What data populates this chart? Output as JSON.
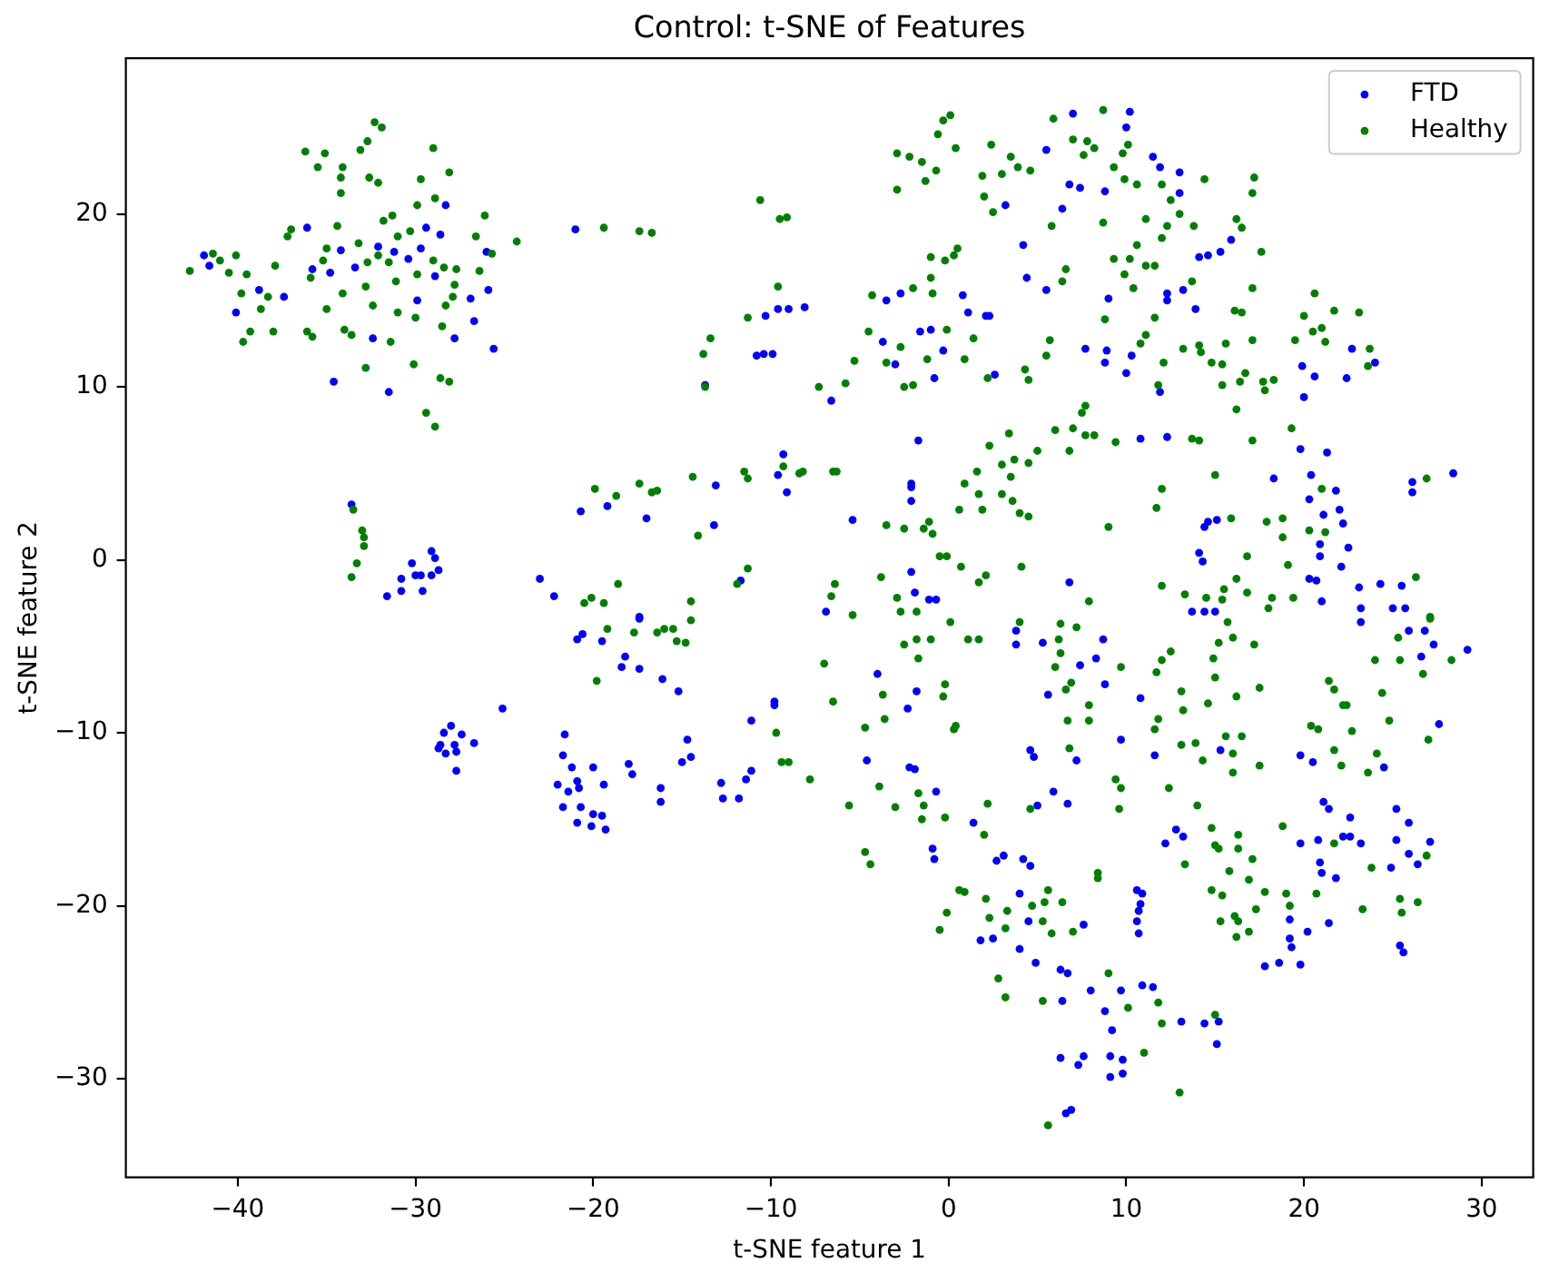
{
  "chart_data": {
    "type": "scatter",
    "title": "Control: t-SNE of Features",
    "xlabel": "t-SNE feature 1",
    "ylabel": "t-SNE feature 2",
    "xlim": [
      -46.3,
      32.9
    ],
    "ylim": [
      -35.7,
      29.0
    ],
    "xticks": [
      {
        "value": -40,
        "label": "−40"
      },
      {
        "value": -30,
        "label": "−30"
      },
      {
        "value": -20,
        "label": "−20"
      },
      {
        "value": -10,
        "label": "−10"
      },
      0,
      10,
      20,
      30
    ],
    "yticks": [
      {
        "value": -30,
        "label": "−30"
      },
      {
        "value": -20,
        "label": "−20"
      },
      {
        "value": -10,
        "label": "−10"
      },
      0,
      10,
      20
    ],
    "marker": "circle",
    "legend": "top right",
    "series": [
      {
        "name": "FTD",
        "color": "#0000ff",
        "x": [
          -41.9,
          -41.6,
          -40.1,
          -38.8,
          -37.4,
          -36.1,
          -35.8,
          -34.8,
          -34.2,
          -33.4,
          -34.6,
          -32.1,
          -32.4,
          -31.5,
          -31.2,
          -30.4,
          -29.7,
          -29.4,
          -28.6,
          -28.3,
          -28.9,
          -29.9,
          -27.8,
          -26.9,
          -26.7,
          -26.0,
          -25.9,
          -25.6,
          -21.0,
          -20.7,
          -23.0,
          -22.2,
          -33.6,
          -31.6,
          -30.8,
          -30.8,
          -30.2,
          -30.0,
          -29.7,
          -29.6,
          -29.1,
          -28.9,
          -29.1,
          -28.7,
          7.0,
          5.5,
          6.8,
          7.4,
          6.4,
          3.2,
          4.2,
          4.4,
          5.5,
          0.8,
          1.1,
          2.1,
          2.3,
          -2.7,
          -3.5,
          -3.7,
          -3.0,
          -1.6,
          -1.0,
          -0.3,
          -0.8,
          2.6,
          -6.6,
          -13.7,
          -10.8,
          -10.4,
          -9.9,
          -10.3,
          -9.6,
          -9.0,
          -8.1,
          7.7,
          -1.7,
          -9.3,
          -9.6,
          -9.1,
          -13.1,
          -17.0,
          -13.2,
          -19.2,
          -2.1,
          -2.1,
          -2.1,
          -5.4,
          -2.1,
          -1.9,
          -1.1,
          -0.7,
          -6.9,
          -11.7,
          -17.4,
          6.8,
          10.2,
          10.0,
          8.8,
          11.5,
          11.9,
          13.0,
          13.0,
          14.1,
          14.6,
          15.3,
          15.9,
          9.0,
          12.3,
          12.3,
          13.2,
          13.9,
          8.9,
          8.8,
          10.3,
          10.0,
          11.9,
          19.9,
          20.6,
          20.0,
          22.4,
          22.7,
          24.0,
          10.8,
          12.3,
          19.8,
          21.3,
          18.3,
          20.4,
          21.8,
          20.3,
          22.0,
          21.1,
          22.2,
          20.9,
          22.5,
          20.9,
          22.1,
          20.3,
          20.7,
          21.0,
          23.1,
          24.3,
          25.5,
          23.2,
          25.0,
          25.7,
          26.1,
          26.1,
          28.4,
          14.4,
          14.6,
          15.1,
          14.1,
          14.3,
          13.7,
          14.4,
          15.0,
          -25.1,
          -28.0,
          -28.4,
          -27.4,
          -28.6,
          -27.8,
          -28.7,
          -27.7,
          -28.3,
          -26.7,
          -27.7,
          -21.6,
          -21.7,
          -21.2,
          -22.0,
          -21.4,
          -20.9,
          -20.8,
          -21.7,
          -20.7,
          -20.9,
          -20.1,
          -20.0,
          -20.0,
          -20.9,
          -20.6,
          -19.5,
          -18.4,
          -18.2,
          -17.4,
          -17.4,
          -16.1,
          -15.2,
          -19.4,
          -19.5,
          -19.3,
          -18.0,
          -17.8,
          -16.2,
          -16.2,
          -14.7,
          -15.0,
          -14.5,
          -12.8,
          -12.7,
          -11.8,
          -11.4,
          -11.1,
          -11.1,
          -9.8,
          -9.8,
          -4.0,
          -2.3,
          -1.8,
          -4.6,
          -2.2,
          -1.9,
          -0.7,
          -0.9,
          -0.8,
          1.4,
          2.7,
          3.1,
          4.2,
          4.6,
          3.8,
          3.8,
          5.3,
          5.6,
          4.6,
          4.8,
          5.0,
          5.9,
          4.0,
          4.5,
          1.8,
          2.5,
          4.0,
          4.9,
          6.7,
          7.2,
          7.4,
          8.3,
          8.7,
          8.8,
          9.7,
          10.8,
          11.6,
          12.2,
          12.8,
          13.2,
          15.3,
          10.6,
          10.9,
          10.8,
          10.7,
          10.6,
          10.7,
          7.6,
          6.3,
          6.7,
          6.4,
          6.3,
          7.3,
          7.6,
          6.6,
          6.9,
          8.0,
          8.8,
          9.2,
          9.7,
          9.1,
          9.8,
          9.1,
          9.8,
          10.9,
          11.5,
          13.1,
          14.4,
          15.2,
          15.1,
          17.8,
          18.6,
          19.8,
          19.2,
          19.2,
          19.3,
          20.2,
          21.4,
          19.8,
          20.8,
          20.9,
          21.0,
          21.8,
          21.1,
          21.4,
          22.2,
          22.6,
          22.6,
          23.2,
          24.9,
          25.2,
          25.2,
          25.9,
          25.9,
          26.4,
          27.1,
          27.6,
          26.6,
          27.3,
          26.8,
          25.9,
          29.2,
          23.2,
          25.4,
          25.6,
          20.5,
          19.8,
          24.5
        ],
        "values": [
          17.6,
          17.0,
          14.3,
          15.6,
          15.2,
          19.2,
          16.8,
          16.6,
          17.9,
          16.9,
          10.3,
          18.1,
          12.8,
          9.7,
          17.8,
          17.4,
          18.0,
          19.2,
          18.8,
          20.5,
          16.4,
          15.0,
          12.8,
          15.1,
          13.8,
          17.8,
          15.6,
          12.2,
          19.1,
          2.8,
          -1.1,
          -2.1,
          3.2,
          -2.1,
          -1.1,
          -1.8,
          -0.2,
          -0.9,
          -0.9,
          -1.8,
          0.5,
          0.1,
          -0.9,
          -0.6,
          25.8,
          23.7,
          21.7,
          21.5,
          20.3,
          20.5,
          18.2,
          16.3,
          15.6,
          15.3,
          14.3,
          14.1,
          14.1,
          15.4,
          15.0,
          12.6,
          11.3,
          13.2,
          13.3,
          12.1,
          10.5,
          10.7,
          9.2,
          10.1,
          11.8,
          11.9,
          11.9,
          14.1,
          14.5,
          14.5,
          14.6,
          12.2,
          6.9,
          6.1,
          4.9,
          3.9,
          4.3,
          2.4,
          2.0,
          3.1,
          4.4,
          4.2,
          3.4,
          2.3,
          -0.7,
          -1.9,
          -2.3,
          -2.3,
          -3.0,
          -1.2,
          -3.3,
          -1.3,
          25.9,
          25.0,
          21.3,
          23.3,
          22.7,
          22.4,
          21.2,
          17.5,
          17.6,
          17.8,
          18.5,
          15.1,
          15.4,
          15.0,
          15.6,
          14.5,
          12.1,
          11.4,
          11.8,
          10.8,
          9.7,
          11.2,
          10.6,
          9.4,
          10.5,
          12.2,
          11.4,
          7.0,
          7.1,
          6.4,
          6.2,
          4.7,
          4.9,
          4.0,
          3.5,
          2.9,
          2.6,
          2.1,
          0.9,
          0.7,
          0.2,
          -0.4,
          -1.1,
          -1.2,
          -2.4,
          -1.6,
          -1.4,
          -1.5,
          -2.8,
          -2.8,
          -2.8,
          4.5,
          3.9,
          5.0,
          1.9,
          2.2,
          2.3,
          0.4,
          -0.1,
          -3.0,
          -3.0,
          -3.0,
          -8.6,
          -9.6,
          -10.0,
          -10.1,
          -10.7,
          -10.7,
          -10.9,
          -11.1,
          -11.2,
          -10.6,
          -12.2,
          -10.1,
          -11.3,
          -12.0,
          -13.0,
          -13.4,
          -12.8,
          -13.2,
          -14.3,
          -14.3,
          -15.2,
          -15.4,
          -14.7,
          -12.0,
          -4.6,
          -4.3,
          -4.7,
          -6.2,
          -5.6,
          -6.3,
          -3.4,
          -6.9,
          -7.6,
          -13.0,
          -14.8,
          -15.6,
          -11.8,
          -12.4,
          -13.2,
          -14.0,
          -10.4,
          -11.7,
          -11.4,
          -12.9,
          -13.8,
          -13.8,
          -12.7,
          -12.2,
          -9.3,
          -8.2,
          -8.4,
          -6.6,
          -8.6,
          -7.6,
          -11.6,
          -12.0,
          -12.1,
          -13.4,
          -16.7,
          -17.3,
          -15.2,
          -17.4,
          -17.1,
          -17.3,
          -17.7,
          -4.1,
          -4.9,
          -4.8,
          -7.8,
          -11.0,
          -11.4,
          -14.2,
          -13.4,
          -19.3,
          -20.9,
          -22.0,
          -21.9,
          -22.5,
          -23.3,
          -14.1,
          -11.6,
          -6.1,
          -5.7,
          -4.6,
          -7.2,
          -10.4,
          -8.0,
          -11.3,
          -16.4,
          -15.6,
          -16.0,
          -11.0,
          -19.1,
          -19.3,
          -19.9,
          -20.3,
          -20.9,
          -21.6,
          -21.1,
          -23.7,
          -23.9,
          -25.5,
          -28.8,
          -29.2,
          -28.7,
          -32.0,
          -31.8,
          -24.9,
          -26.1,
          -27.2,
          -24.9,
          -28.7,
          -28.9,
          -29.9,
          -29.7,
          -24.6,
          -24.7,
          -26.7,
          -26.8,
          -26.7,
          -28.0,
          -23.5,
          -23.3,
          -23.4,
          -20.8,
          -21.9,
          -22.4,
          -21.5,
          -21.0,
          -16.4,
          -16.2,
          -17.5,
          -18.1,
          -18.4,
          -14.0,
          -14.4,
          -16.0,
          -16.0,
          -14.9,
          -16.4,
          -17.8,
          -14.4,
          -16.2,
          -15.2,
          -17.0,
          -17.6,
          -16.3,
          -9.5,
          -5.6,
          -4.9,
          -4.1,
          -4.1,
          -5.2,
          -3.6,
          -22.3,
          -22.7,
          -11.7,
          -11.3,
          -12.0
        ]
      },
      {
        "name": "Healthy",
        "color": "#008000",
        "x": [
          -42.7,
          -41.4,
          -41.0,
          -40.5,
          -40.1,
          -39.8,
          -39.7,
          -39.5,
          -39.3,
          -38.7,
          -38.3,
          -38.0,
          -37.9,
          -37.2,
          -37.0,
          -36.2,
          -36.1,
          -35.9,
          -35.8,
          -35.5,
          -35.2,
          -35.1,
          -35.0,
          -35.0,
          -34.4,
          -34.2,
          -34.2,
          -34.1,
          -34.1,
          -34.0,
          -33.6,
          -33.2,
          -33.1,
          -32.8,
          -32.8,
          -32.7,
          -32.7,
          -32.6,
          -32.4,
          -32.3,
          -32.1,
          -32.1,
          -31.9,
          -31.8,
          -31.5,
          -31.4,
          -31.3,
          -31.1,
          -31.0,
          -31.0,
          -30.3,
          -30.1,
          -30.0,
          -29.9,
          -29.9,
          -29.7,
          -29.4,
          -29.0,
          -29.0,
          -28.9,
          -28.9,
          -28.6,
          -28.5,
          -28.4,
          -28.3,
          -28.1,
          -28.1,
          -27.9,
          -27.8,
          -27.7,
          -26.6,
          -26.4,
          -26.1,
          -25.7,
          -24.3,
          -33.5,
          -33.0,
          -32.9,
          -32.9,
          -33.3,
          -33.6,
          -19.9,
          -20.5,
          -20.1,
          -19.4,
          -17.4,
          -16.7,
          -10.6,
          -9.5,
          -9.1,
          -9.6,
          -11.3,
          -13.4,
          -13.8,
          -13.7,
          -7.3,
          -5.8,
          -5.3,
          -4.5,
          -4.3,
          -3.5,
          -2.7,
          -2.5,
          -2.0,
          -2.0,
          -1.0,
          -0.9,
          -1.0,
          -0.2,
          0.3,
          0.5,
          -0.1,
          -1.2,
          0.9,
          1.4,
          -2.9,
          -2.9,
          -2.2,
          -1.5,
          -1.3,
          -0.7,
          -0.6,
          -0.3,
          0.1,
          0.4,
          1.9,
          2.0,
          2.4,
          2.5,
          3.0,
          3.5,
          3.9,
          4.6,
          5.9,
          5.8,
          6.4,
          6.6,
          7.0,
          7.6,
          7.8,
          4.3,
          4.5,
          5.5,
          5.7,
          2.2,
          7.5,
          7.7,
          7.7,
          6.8,
          7.0,
          6.0,
          5.0,
          4.5,
          3.4,
          3.0,
          3.7,
          3.5,
          2.3,
          1.6,
          0.9,
          1.7,
          1.9,
          3.0,
          3.6,
          4.0,
          4.5,
          0.6,
          -3.5,
          -2.5,
          -1.4,
          -1.1,
          -0.9,
          -0.5,
          -0.1,
          0.7,
          1.7,
          2.1,
          4.1,
          -3.8,
          -2.9,
          -2.7,
          -1.8,
          -6.4,
          -6.6,
          -5.4,
          -14.4,
          -11.5,
          -11.3,
          -9.3,
          -8.4,
          -8.2,
          -6.5,
          -6.3,
          -17.4,
          -16.7,
          -16.4,
          -18.7,
          -14.1,
          -11.3,
          -11.9,
          -18.6,
          -19.4,
          -14.5,
          8.7,
          8.2,
          10.1,
          9.8,
          9.3,
          9.9,
          10.6,
          12.0,
          14.4,
          17.2,
          17.1,
          12.5,
          13.0,
          11.1,
          8.7,
          12.3,
          13.8,
          16.2,
          16.5,
          12.0,
          10.6,
          17.6,
          9.3,
          10.2,
          11.1,
          11.6,
          9.9,
          10.4,
          13.7,
          17.1,
          8.8,
          11.6,
          11.1,
          10.8,
          12.1,
          13.2,
          14.1,
          14.2,
          14.8,
          15.4,
          15.6,
          16.1,
          16.5,
          17.1,
          16.7,
          16.4,
          15.4,
          16.2,
          17.7,
          18.3,
          17.8,
          11.8,
          19.5,
          20.0,
          20.5,
          21.0,
          21.2,
          20.6,
          21.7,
          23.1,
          23.7,
          23.6,
          8.2,
          9.4,
          13.7,
          14.1,
          17.1,
          19.3,
          15.0,
          12.0,
          11.7,
          9.0,
          15.9,
          17.9,
          18.8,
          18.8,
          20.3,
          21.2,
          21.0,
          16.8,
          19.1,
          16.2,
          15.5,
          16.8,
          18.2,
          19.4,
          18.0,
          15.4,
          13.3,
          12.0,
          14.5,
          26.3,
          26.9,
          27.1,
          7.9,
          -19.8,
          -19.2,
          -17.7,
          -16.4,
          -16.0,
          -15.5,
          -15.3,
          -14.8,
          -14.5,
          -7.0,
          -6.5,
          -4.7,
          -3.7,
          -3.6,
          -9.7,
          -9.4,
          -9.0,
          -7.8,
          -5.6,
          -3.9,
          -3.0,
          -1.7,
          -1.4,
          -1.5,
          -0.2,
          -0.3,
          0.1,
          0.3,
          0.4,
          -1.0,
          -1.8,
          -1.7,
          -2.5,
          1.1,
          1.7,
          2.2,
          2.0,
          -0.2,
          -4.7,
          -4.4,
          0.6,
          0.9,
          -0.1,
          -0.5,
          2.1,
          2.3,
          3.3,
          3.2,
          4.7,
          5.4,
          5.6,
          5.3,
          5.8,
          2.8,
          3.2,
          5.3,
          5.6,
          4.0,
          4.6,
          6.0,
          6.3,
          7.2,
          6.2,
          6.3,
          6.6,
          6.9,
          7.9,
          7.9,
          6.7,
          6.8,
          9.7,
          11.7,
          12.0,
          12.5,
          13.1,
          13.2,
          11.6,
          11.8,
          13.1,
          13.9,
          14.3,
          14.6,
          15.0,
          14.9,
          15.2,
          15.7,
          16.0,
          17.2,
          16.2,
          15.6,
          16.5,
          16.0,
          16.0,
          17.5,
          17.5,
          14.0,
          12.4,
          9.4,
          9.7,
          9.6,
          14.8,
          15.0,
          15.2,
          13.3,
          16.3,
          16.3,
          17.1,
          15.8,
          16.9,
          14.8,
          15.4,
          15.3,
          16.1,
          16.3,
          16.2,
          16.9,
          17.3,
          17.8,
          19.0,
          19.2,
          18.8,
          20.7,
          21.7,
          21.4,
          21.7,
          22.2,
          22.4,
          22.7,
          21.7,
          22.1,
          20.4,
          20.8,
          23.6,
          24.1,
          24.4,
          24.8,
          24.0,
          25.4,
          25.3,
          26.7,
          28.3,
          27.1,
          27.0,
          23.8,
          23.3,
          25.4,
          25.5,
          26.4,
          26.9,
          6.4,
          7.0,
          9.0,
          10.1,
          11.8,
          12.0,
          11.0,
          13.0,
          15.0,
          8.4,
          8.4
        ],
        "values": [
          16.7,
          17.7,
          17.3,
          16.6,
          17.6,
          15.4,
          12.6,
          16.5,
          13.2,
          14.5,
          15.2,
          13.2,
          17.0,
          18.7,
          19.1,
          23.6,
          13.2,
          16.3,
          12.9,
          22.7,
          17.3,
          23.5,
          18.0,
          14.5,
          19.3,
          21.2,
          22.1,
          22.7,
          15.4,
          13.3,
          13.0,
          18.3,
          23.7,
          15.8,
          11.1,
          17.2,
          24.2,
          22.1,
          14.7,
          25.3,
          21.8,
          17.6,
          25.0,
          19.6,
          17.2,
          12.6,
          19.9,
          16.1,
          18.7,
          14.3,
          19.0,
          11.3,
          14.0,
          20.5,
          16.5,
          22.0,
          8.5,
          23.8,
          17.3,
          7.7,
          20.9,
          10.5,
          13.5,
          16.9,
          14.7,
          22.4,
          10.3,
          15.2,
          15.9,
          16.8,
          18.7,
          16.7,
          19.9,
          17.7,
          18.4,
          2.9,
          1.7,
          1.3,
          0.8,
          -0.2,
          -1.0,
          4.1,
          -2.5,
          -2.2,
          19.2,
          19.0,
          18.9,
          20.8,
          19.7,
          19.8,
          15.8,
          14.0,
          12.8,
          11.9,
          10.0,
          10.0,
          10.2,
          11.5,
          13.2,
          15.3,
          11.4,
          12.3,
          10.0,
          10.1,
          15.7,
          16.3,
          15.4,
          17.5,
          17.3,
          17.6,
          18.0,
          13.3,
          11.6,
          11.6,
          12.8,
          23.5,
          21.4,
          23.3,
          23.0,
          21.9,
          22.5,
          24.6,
          25.4,
          25.7,
          23.8,
          22.2,
          21.0,
          24.0,
          20.1,
          22.3,
          23.3,
          22.7,
          22.5,
          25.5,
          19.3,
          16.1,
          16.8,
          24.3,
          23.4,
          24.2,
          11.0,
          10.4,
          11.8,
          12.7,
          10.5,
          8.5,
          8.9,
          7.2,
          6.3,
          7.6,
          7.5,
          6.3,
          5.6,
          7.3,
          5.5,
          5.8,
          4.8,
          6.6,
          5.1,
          4.4,
          3.8,
          2.9,
          3.8,
          3.4,
          2.7,
          2.5,
          2.9,
          2.0,
          1.8,
          1.8,
          2.2,
          1.5,
          0.2,
          0.2,
          -0.4,
          -1.3,
          -0.9,
          -0.4,
          -1.0,
          -2.2,
          -3.0,
          -3.0,
          -1.4,
          -2.1,
          -3.2,
          4.8,
          5.1,
          4.7,
          5.4,
          5.0,
          5.1,
          5.1,
          5.1,
          4.4,
          3.9,
          4.0,
          3.7,
          1.4,
          -0.5,
          -1.4,
          -1.4,
          -2.5,
          -2.4,
          26.0,
          23.8,
          24.0,
          23.5,
          22.7,
          22.0,
          21.7,
          21.7,
          22.0,
          22.1,
          21.2,
          20.8,
          20.0,
          19.7,
          19.5,
          19.3,
          19.3,
          19.7,
          19.2,
          18.6,
          18.2,
          17.8,
          17.4,
          17.4,
          17.0,
          17.0,
          16.5,
          15.7,
          16.1,
          15.7,
          13.9,
          14.0,
          13.0,
          12.5,
          11.4,
          12.2,
          12.4,
          12.0,
          11.4,
          11.3,
          12.5,
          14.4,
          14.3,
          12.7,
          10.8,
          10.3,
          10.1,
          8.7,
          10.3,
          10.4,
          9.8,
          10.1,
          12.7,
          14.1,
          13.2,
          13.4,
          12.6,
          15.4,
          14.4,
          14.3,
          12.2,
          11.2,
          7.2,
          6.8,
          7.0,
          6.9,
          6.9,
          7.6,
          4.9,
          4.1,
          3.0,
          1.9,
          2.4,
          2.2,
          2.4,
          1.3,
          1.7,
          1.6,
          4.1,
          0.2,
          -0.3,
          -1.1,
          -1.7,
          -1.9,
          -2.2,
          -2.2,
          -2.8,
          -2.3,
          -2.0,
          -1.5,
          -2.2,
          -1.0,
          4.7,
          -3.3,
          -2.4,
          -7.0,
          -4.0,
          -4.2,
          -4.2,
          -4.0,
          -4.0,
          -4.7,
          -4.8,
          -3.5,
          -6.0,
          -8.2,
          -9.7,
          -7.8,
          -9.2,
          -10.0,
          -11.7,
          -11.7,
          -12.7,
          -14.2,
          -13.1,
          -14.3,
          -13.5,
          -14.2,
          -15.0,
          -7.2,
          -7.9,
          -3.6,
          -9.8,
          -9.6,
          -4.6,
          -4.6,
          -5.7,
          -4.9,
          -4.6,
          -4.6,
          -14.1,
          -15.9,
          -14.9,
          -16.9,
          -17.6,
          -19.1,
          -19.2,
          -20.4,
          -21.4,
          -19.6,
          -20.7,
          -20.3,
          -21.3,
          -20.0,
          -19.8,
          -19.1,
          -20.9,
          -21.6,
          -24.2,
          -25.3,
          -25.5,
          -32.7,
          -3.6,
          -14.4,
          -6.2,
          -3.7,
          -3.9,
          -4.6,
          -5.4,
          -7.5,
          -7.1,
          -8.4,
          -9.3,
          -9.3,
          -10.9,
          -6.2,
          -6.5,
          -5.8,
          -5.3,
          -7.6,
          -8.7,
          -9.8,
          -9.2,
          -10.7,
          -10.6,
          -11.6,
          -8.3,
          -6.8,
          -5.7,
          -4.8,
          -3.6,
          -4.5,
          -4.9,
          -7.9,
          -10.2,
          -10.2,
          -11.2,
          -12.3,
          -7.4,
          -11.9,
          -14.2,
          -13.2,
          -12.7,
          -13.2,
          -14.4,
          -15.5,
          -16.5,
          -16.7,
          -17.6,
          -15.9,
          -16.7,
          -17.3,
          -18.0,
          -18.5,
          -19.1,
          -19.4,
          -20.9,
          -20.6,
          -20.9,
          -21.8,
          -21.5,
          -20.2,
          -19.2,
          -19.3,
          -20.0,
          -15.4,
          -19.3,
          -16.4,
          -7.0,
          -7.5,
          -8.4,
          -8.4,
          -9.9,
          -11.0,
          -11.9,
          -9.6,
          -9.8,
          -12.3,
          -11.2,
          -7.7,
          -9.3,
          -5.8,
          -5.8,
          -4.5,
          -6.6,
          -5.8,
          -3.4,
          -10.4,
          -17.8,
          -20.2,
          -19.6,
          -20.4,
          -19.8,
          -17.1,
          -19.8,
          -21.5,
          -23.9,
          -25.9,
          -25.6,
          -26.8,
          -28.5,
          -30.8,
          -26.3,
          -18.1,
          -18.4
        ]
      }
    ]
  }
}
